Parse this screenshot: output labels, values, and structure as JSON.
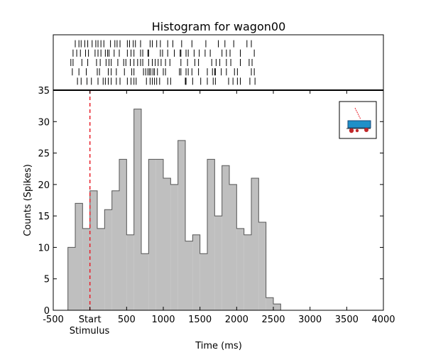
{
  "chart_data": {
    "type": "bar",
    "title": "Histogram for wagon00",
    "xlabel": "Time (ms)",
    "ylabel": "Counts (Spikes)",
    "xlim": [
      -500,
      4000
    ],
    "ylim": [
      0,
      35
    ],
    "x_ticks": [
      {
        "value": -500,
        "label": "-500"
      },
      {
        "value": 0,
        "label": "Start"
      },
      {
        "value": 500,
        "label": "500"
      },
      {
        "value": 1000,
        "label": "1000"
      },
      {
        "value": 1500,
        "label": "1500"
      },
      {
        "value": 2000,
        "label": "2000"
      },
      {
        "value": 2500,
        "label": "2500"
      },
      {
        "value": 3000,
        "label": "3000"
      },
      {
        "value": 3500,
        "label": "3500"
      },
      {
        "value": 4000,
        "label": "4000"
      }
    ],
    "x_sublabel": "Stimulus",
    "y_ticks": [
      0,
      5,
      10,
      15,
      20,
      25,
      30,
      35
    ],
    "bin_width": 100,
    "bin_edges_start": -300,
    "counts": [
      10,
      17,
      13,
      19,
      13,
      16,
      19,
      24,
      12,
      32,
      9,
      24,
      24,
      21,
      20,
      27,
      11,
      12,
      9,
      24,
      15,
      23,
      20,
      13,
      12,
      21,
      14,
      2,
      1
    ],
    "stimulus_onset": 0,
    "raster_trials": [
      [
        -200,
        -150,
        -120,
        -70,
        -30,
        30,
        80,
        110,
        150,
        190,
        280,
        340,
        370,
        410,
        510,
        540,
        590,
        620,
        690,
        820,
        850,
        910,
        960,
        1060,
        1130,
        1250,
        1390,
        1580,
        1750,
        1840,
        1960,
        2140,
        2200
      ],
      [
        -230,
        -180,
        -130,
        -60,
        -20,
        70,
        110,
        150,
        210,
        240,
        260,
        330,
        400,
        510,
        560,
        600,
        690,
        720,
        790,
        800,
        960,
        990,
        1060,
        1150,
        1230,
        1240,
        1310,
        1340,
        1420,
        1490,
        1570,
        1640,
        1800,
        1860,
        1910,
        2050,
        2240
      ],
      [
        -260,
        -230,
        -110,
        -30,
        90,
        140,
        220,
        260,
        290,
        380,
        460,
        490,
        550,
        600,
        650,
        690,
        720,
        800,
        850,
        890,
        930,
        970,
        1030,
        1090,
        1240,
        1330,
        1430,
        1480,
        1660,
        1720,
        1770,
        1860,
        1920,
        2050,
        2170,
        2210
      ],
      [
        -240,
        -150,
        -50,
        100,
        130,
        250,
        290,
        360,
        470,
        570,
        600,
        730,
        760,
        790,
        810,
        830,
        860,
        880,
        920,
        1000,
        1030,
        1220,
        1240,
        1310,
        1340,
        1390,
        1480,
        1600,
        1670,
        1700,
        1710,
        1790,
        1860,
        1970,
        2010,
        2200,
        2240
      ],
      [
        -170,
        -120,
        -40,
        20,
        110,
        180,
        210,
        250,
        290,
        360,
        410,
        510,
        560,
        600,
        630,
        770,
        820,
        850,
        880,
        910,
        950,
        1060,
        1100,
        1300,
        1310,
        1400,
        1510,
        1600,
        1680,
        1710,
        1890,
        1950,
        2010,
        2050,
        2180,
        2250
      ]
    ],
    "colors": {
      "bar_fill": "#bfbfbf",
      "bar_edge": "#555555",
      "stimulus_line": "#e8202a"
    },
    "legend": "none",
    "inset_icon": "wagon-icon",
    "inset_placement": "top-right",
    "grid": false
  }
}
